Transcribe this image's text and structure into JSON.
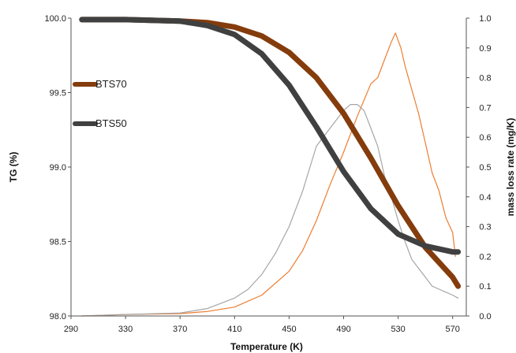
{
  "chart_data": {
    "type": "line",
    "xlabel": "Temperature (K)",
    "ylabel": "TG (%)",
    "y2label": "mass loss rate (mg/K)",
    "xlim": [
      290,
      580
    ],
    "ylim": [
      98.0,
      100.0
    ],
    "y2lim": [
      0.0,
      1.0
    ],
    "x_ticks": [
      290,
      330,
      370,
      410,
      450,
      490,
      530,
      570
    ],
    "y_ticks": [
      "98.0",
      "98.5",
      "99.0",
      "99.5",
      "100.0"
    ],
    "y2_ticks": [
      "0.0",
      "0.1",
      "0.2",
      "0.3",
      "0.4",
      "0.5",
      "0.6",
      "0.7",
      "0.8",
      "0.9",
      "1.0"
    ],
    "grid": false,
    "legend_position": "left",
    "series": [
      {
        "name": "BTS70",
        "axis": "left",
        "color": "#843c0c",
        "x": [
          298,
          330,
          370,
          390,
          410,
          430,
          450,
          470,
          490,
          510,
          530,
          550,
          570,
          574
        ],
        "y": [
          99.99,
          99.99,
          99.98,
          99.97,
          99.94,
          99.88,
          99.77,
          99.6,
          99.36,
          99.06,
          98.74,
          98.46,
          98.26,
          98.2
        ]
      },
      {
        "name": "BTS50",
        "axis": "left",
        "color": "#404040",
        "x": [
          298,
          330,
          370,
          390,
          410,
          430,
          450,
          470,
          490,
          510,
          530,
          550,
          570,
          574
        ],
        "y": [
          99.99,
          99.99,
          99.98,
          99.95,
          99.89,
          99.76,
          99.55,
          99.27,
          98.97,
          98.72,
          98.55,
          98.47,
          98.43,
          98.43
        ]
      },
      {
        "axis": "right",
        "color": "#ed7d31",
        "x": [
          298,
          330,
          370,
          390,
          410,
          430,
          450,
          460,
          470,
          480,
          490,
          500,
          510,
          515,
          520,
          525,
          528,
          532,
          535,
          540,
          545,
          550,
          555,
          560,
          565,
          570,
          572
        ],
        "y": [
          0.0,
          0.005,
          0.008,
          0.015,
          0.03,
          0.07,
          0.15,
          0.22,
          0.32,
          0.44,
          0.55,
          0.67,
          0.78,
          0.8,
          0.86,
          0.92,
          0.95,
          0.9,
          0.84,
          0.76,
          0.68,
          0.58,
          0.48,
          0.42,
          0.33,
          0.28,
          0.2
        ]
      },
      {
        "axis": "right",
        "color": "#a6a6a6",
        "x": [
          298,
          330,
          370,
          390,
          410,
          420,
          430,
          440,
          450,
          460,
          470,
          480,
          490,
          495,
          500,
          505,
          510,
          515,
          520,
          525,
          530,
          535,
          540,
          545,
          550,
          555,
          560,
          565,
          570,
          574
        ],
        "y": [
          0.0,
          0.005,
          0.01,
          0.025,
          0.06,
          0.09,
          0.14,
          0.21,
          0.3,
          0.42,
          0.57,
          0.63,
          0.69,
          0.71,
          0.71,
          0.69,
          0.63,
          0.57,
          0.47,
          0.4,
          0.32,
          0.25,
          0.19,
          0.16,
          0.13,
          0.1,
          0.09,
          0.08,
          0.07,
          0.06
        ]
      }
    ]
  }
}
